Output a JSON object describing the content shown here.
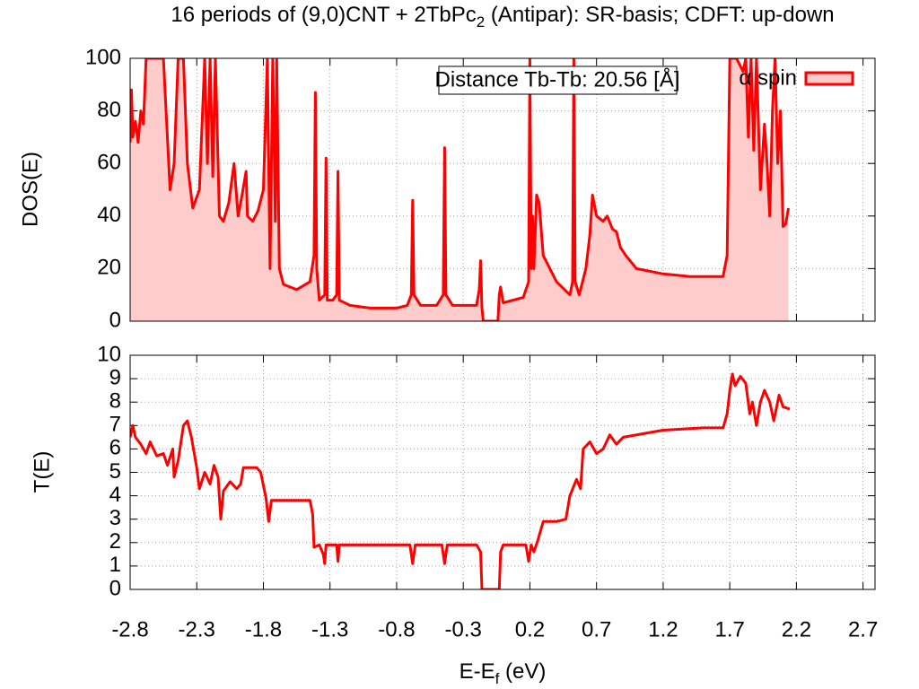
{
  "chart_data": [
    {
      "type": "area",
      "title": [
        "16 periods of (9,0)CNT + 2TbPc",
        "2",
        " (Antipar): SR-basis; CDFT: up-down"
      ],
      "y_label": "DOS(E)",
      "annotation": "Distance Tb-Tb: 20.56 [Å]",
      "legend": "top-right",
      "grid": true,
      "xlim": [
        -2.8,
        2.79
      ],
      "ylim": [
        0,
        100
      ],
      "yticks": [
        0,
        20,
        40,
        60,
        80,
        100
      ],
      "x": [
        -2.8,
        -2.79,
        -2.78,
        -2.76,
        -2.74,
        -2.72,
        -2.7,
        -2.68,
        -2.62,
        -2.55,
        -2.5,
        -2.47,
        -2.44,
        -2.4,
        -2.37,
        -2.33,
        -2.28,
        -2.24,
        -2.22,
        -2.2,
        -2.18,
        -2.16,
        -2.13,
        -2.1,
        -2.06,
        -2.02,
        -1.99,
        -1.96,
        -1.93,
        -1.92,
        -1.88,
        -1.84,
        -1.8,
        -1.77,
        -1.75,
        -1.73,
        -1.71,
        -1.7,
        -1.68,
        -1.65,
        -1.55,
        -1.45,
        -1.42,
        -1.41,
        -1.4,
        -1.38,
        -1.34,
        -1.33,
        -1.32,
        -1.28,
        -1.25,
        -1.24,
        -1.23,
        -1.15,
        -1.0,
        -0.8,
        -0.72,
        -0.69,
        -0.68,
        -0.67,
        -0.62,
        -0.5,
        -0.45,
        -0.44,
        -0.43,
        -0.38,
        -0.2,
        -0.18,
        -0.17,
        -0.16,
        -0.15,
        -0.04,
        -0.03,
        -0.02,
        0.0,
        0.15,
        0.19,
        0.2,
        0.21,
        0.22,
        0.23,
        0.25,
        0.27,
        0.3,
        0.4,
        0.5,
        0.52,
        0.53,
        0.54,
        0.57,
        0.62,
        0.65,
        0.67,
        0.7,
        0.75,
        0.78,
        0.82,
        0.85,
        0.88,
        0.92,
        1.0,
        1.2,
        1.4,
        1.65,
        1.68,
        1.7,
        1.75,
        1.8,
        1.82,
        1.84,
        1.86,
        1.88,
        1.9,
        1.93,
        1.96,
        1.98,
        2.0,
        2.02,
        2.04,
        2.06,
        2.08,
        2.1,
        2.12,
        2.14
      ],
      "series": [
        {
          "name": "α spin",
          "color": "#ff0000",
          "fill_color": "#ffcccc",
          "values": [
            68,
            88,
            70,
            76,
            68,
            80,
            75,
            100,
            100,
            100,
            50,
            60,
            100,
            100,
            60,
            43,
            50,
            100,
            60,
            100,
            55,
            100,
            40,
            38,
            45,
            60,
            40,
            48,
            57,
            40,
            38,
            42,
            50,
            100,
            20,
            100,
            38,
            100,
            20,
            14,
            12,
            15,
            25,
            87,
            20,
            8,
            10,
            62,
            8,
            8,
            10,
            57,
            8,
            6,
            5,
            5,
            6,
            10,
            46,
            10,
            6,
            6,
            10,
            66,
            10,
            6,
            6,
            12,
            23,
            5,
            0,
            0,
            10,
            13,
            7,
            9,
            15,
            100,
            20,
            40,
            20,
            48,
            45,
            25,
            15,
            10,
            15,
            100,
            15,
            10,
            20,
            33,
            48,
            40,
            38,
            40,
            35,
            34,
            28,
            25,
            20,
            18,
            17,
            17,
            25,
            100,
            100,
            95,
            100,
            70,
            100,
            65,
            100,
            50,
            75,
            60,
            40,
            80,
            100,
            60,
            80,
            36,
            37,
            43
          ]
        }
      ]
    },
    {
      "type": "line",
      "x_label": [
        "E-E",
        "f",
        " (eV)"
      ],
      "y_label": "T(E)",
      "grid": true,
      "xlim": [
        -2.8,
        2.79
      ],
      "xticks": [
        -2.8,
        -2.3,
        -1.8,
        -1.3,
        -0.8,
        -0.3,
        0.2,
        0.7,
        1.2,
        1.7,
        2.2,
        2.7
      ],
      "ylim": [
        0,
        10
      ],
      "yticks": [
        0,
        1,
        2,
        3,
        4,
        5,
        6,
        7,
        8,
        9,
        10
      ],
      "x": [
        -2.8,
        -2.78,
        -2.76,
        -2.72,
        -2.68,
        -2.65,
        -2.6,
        -2.55,
        -2.52,
        -2.48,
        -2.47,
        -2.44,
        -2.4,
        -2.37,
        -2.34,
        -2.3,
        -2.28,
        -2.24,
        -2.2,
        -2.17,
        -2.14,
        -2.12,
        -2.1,
        -2.05,
        -2.0,
        -1.97,
        -1.95,
        -1.85,
        -1.82,
        -1.78,
        -1.76,
        -1.74,
        -1.6,
        -1.45,
        -1.43,
        -1.42,
        -1.38,
        -1.35,
        -1.34,
        -1.33,
        -1.25,
        -1.24,
        -1.23,
        -0.7,
        -0.68,
        -0.66,
        -0.46,
        -0.44,
        -0.42,
        -0.2,
        -0.17,
        -0.16,
        -0.03,
        -0.02,
        0.0,
        0.17,
        0.19,
        0.21,
        0.23,
        0.26,
        0.3,
        0.4,
        0.47,
        0.5,
        0.55,
        0.58,
        0.6,
        0.65,
        0.7,
        0.75,
        0.8,
        0.85,
        0.9,
        1.2,
        1.5,
        1.65,
        1.68,
        1.7,
        1.72,
        1.74,
        1.78,
        1.82,
        1.85,
        1.87,
        1.9,
        1.93,
        1.96,
        2.0,
        2.03,
        2.07,
        2.1,
        2.15
      ],
      "series": [
        {
          "name": "T",
          "color": "#ff0000",
          "values": [
            6.5,
            7.0,
            6.5,
            6.2,
            5.8,
            6.3,
            5.7,
            5.8,
            5.3,
            6.0,
            4.8,
            5.5,
            7.0,
            7.2,
            6.5,
            5.2,
            4.3,
            5.0,
            4.5,
            5.3,
            4.8,
            3.0,
            4.2,
            4.6,
            4.3,
            4.5,
            5.2,
            5.2,
            5.0,
            3.9,
            2.9,
            3.8,
            3.8,
            3.8,
            3.2,
            1.8,
            1.9,
            1.5,
            1.1,
            1.9,
            1.9,
            1.2,
            1.9,
            1.9,
            1.1,
            1.9,
            1.9,
            1.1,
            1.9,
            1.9,
            1.6,
            0,
            0,
            1.6,
            1.9,
            1.9,
            1.2,
            1.9,
            1.6,
            2.1,
            2.9,
            2.9,
            3.0,
            4.0,
            4.7,
            4.3,
            6.0,
            6.3,
            5.8,
            6.0,
            6.6,
            6.2,
            6.5,
            6.8,
            6.9,
            6.9,
            7.5,
            8.5,
            9.2,
            8.7,
            9.1,
            8.8,
            7.5,
            8.0,
            7.0,
            8.0,
            8.5,
            8.0,
            7.2,
            8.3,
            7.8,
            7.7
          ]
        }
      ]
    }
  ]
}
